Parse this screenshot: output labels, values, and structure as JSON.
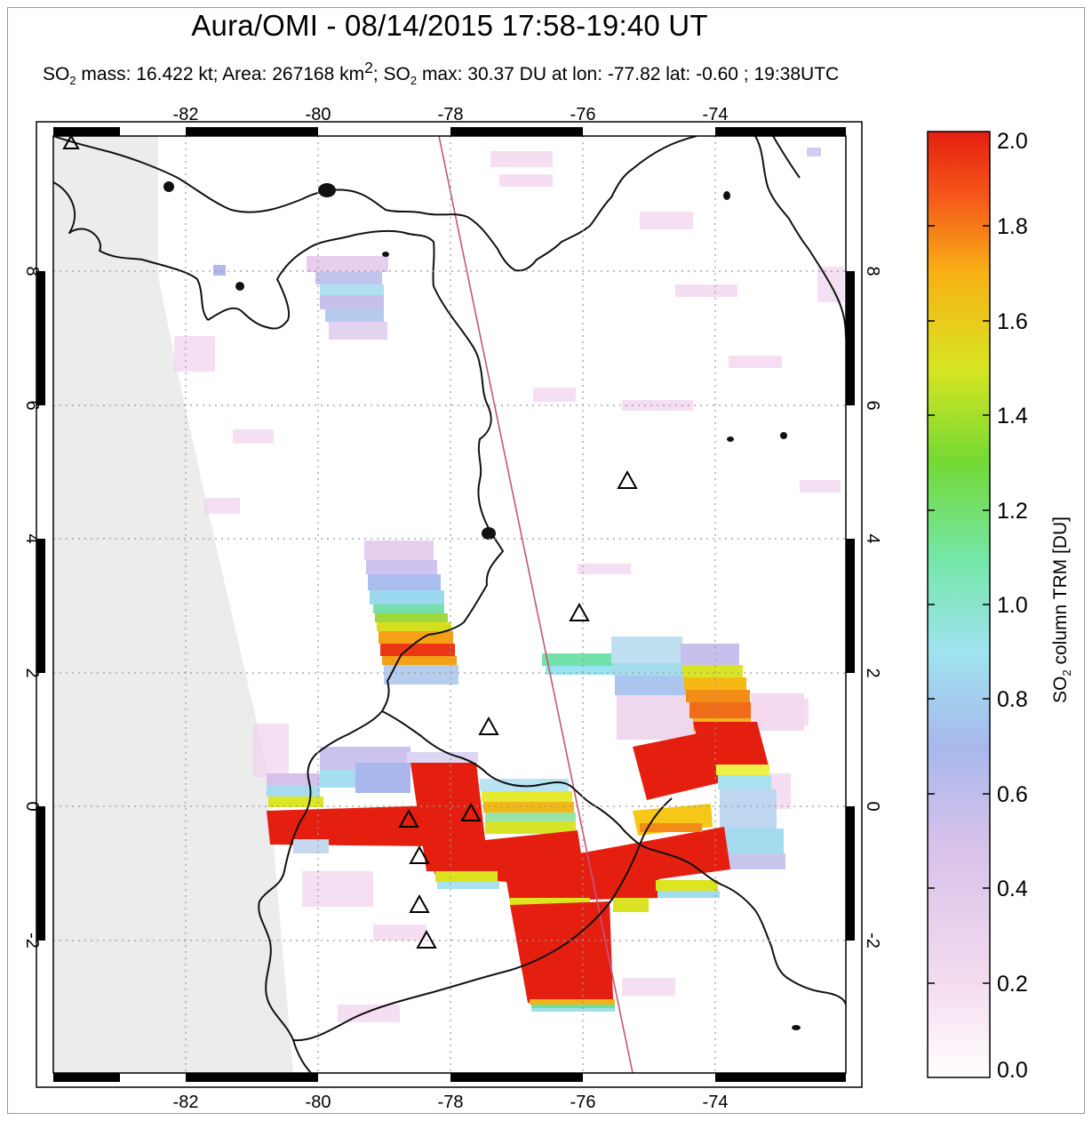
{
  "title": "Aura/OMI - 08/14/2015 17:58-19:40 UT",
  "subtitle": {
    "mass_prefix": "SO",
    "mass_sub": "2",
    "mass_text": " mass: 16.422 kt; Area: 267168 km",
    "area_sup": "2",
    "max_prefix": "; SO",
    "max_sub": "2",
    "max_text": " max: 30.37 DU at lon: -77.82 lat: -0.60 ; 19:38UTC"
  },
  "map": {
    "lon_labels": [
      "-82",
      "-80",
      "-78",
      "-76",
      "-74"
    ],
    "lat_labels": [
      "8",
      "6",
      "4",
      "2",
      "0",
      "-2"
    ],
    "volcano_markers": [
      {
        "name": "volcano-1"
      },
      {
        "name": "volcano-2"
      },
      {
        "name": "volcano-3"
      },
      {
        "name": "volcano-4"
      },
      {
        "name": "volcano-5"
      },
      {
        "name": "volcano-6"
      },
      {
        "name": "volcano-7"
      },
      {
        "name": "volcano-8"
      },
      {
        "name": "volcano-9"
      }
    ]
  },
  "colorbar": {
    "title_prefix": "SO",
    "title_sub": "2",
    "title_rest": " column TRM [DU]",
    "tick_labels": [
      "2.0",
      "1.8",
      "1.6",
      "1.4",
      "1.2",
      "1.0",
      "0.8",
      "0.6",
      "0.4",
      "0.2",
      "0.0"
    ],
    "range": [
      0.0,
      2.0
    ],
    "colors": [
      "#ffffff",
      "#f4dcee",
      "#d6c1ea",
      "#a8b8ec",
      "#9fe3f0",
      "#74e7a7",
      "#73d935",
      "#d8e521",
      "#f7b114",
      "#f6591b",
      "#e51f10"
    ]
  }
}
